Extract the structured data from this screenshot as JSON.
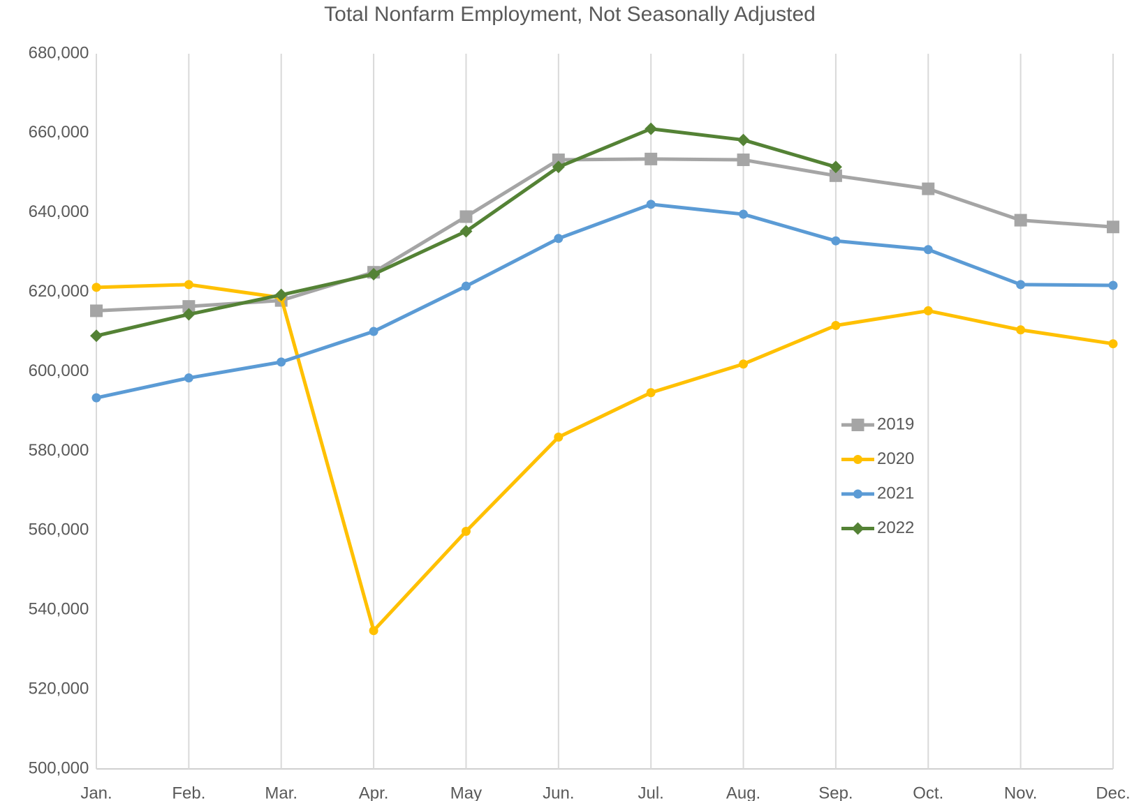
{
  "chart_data": {
    "type": "line",
    "title": "Total Nonfarm Employment, Not Seasonally Adjusted",
    "categories": [
      "Jan.",
      "Feb.",
      "Mar.",
      "Apr.",
      "May",
      "Jun.",
      "Jul.",
      "Aug.",
      "Sep.",
      "Oct.",
      "Nov.",
      "Dec."
    ],
    "series": [
      {
        "name": "2019",
        "color": "#a5a5a5",
        "marker": "square",
        "values": [
          615300,
          616400,
          617900,
          625000,
          639000,
          653300,
          653500,
          653300,
          649300,
          646000,
          638100,
          636400
        ]
      },
      {
        "name": "2020",
        "color": "#ffc000",
        "marker": "circle",
        "values": [
          621200,
          621900,
          618600,
          534800,
          559800,
          583500,
          594700,
          601900,
          611600,
          615300,
          610500,
          607000
        ]
      },
      {
        "name": "2021",
        "color": "#5b9bd5",
        "marker": "circle",
        "values": [
          593400,
          598400,
          602400,
          610100,
          621500,
          633500,
          642100,
          639600,
          632900,
          630700,
          621900,
          621700
        ]
      },
      {
        "name": "2022",
        "color": "#548235",
        "marker": "diamond",
        "values": [
          609000,
          614400,
          619300,
          624500,
          635300,
          651500,
          661100,
          658300,
          651500,
          null,
          null,
          null
        ]
      }
    ],
    "ylim": [
      500000,
      680000
    ],
    "yticks": [
      {
        "value": 500000,
        "label": "500,000"
      },
      {
        "value": 520000,
        "label": "520,000"
      },
      {
        "value": 540000,
        "label": "540,000"
      },
      {
        "value": 560000,
        "label": "560,000"
      },
      {
        "value": 580000,
        "label": "580,000"
      },
      {
        "value": 600000,
        "label": "600,000"
      },
      {
        "value": 620000,
        "label": "620,000"
      },
      {
        "value": 640000,
        "label": "640,000"
      },
      {
        "value": 660000,
        "label": "660,000"
      },
      {
        "value": 680000,
        "label": "680,000"
      }
    ],
    "grid": "vertical",
    "legend": "right"
  }
}
